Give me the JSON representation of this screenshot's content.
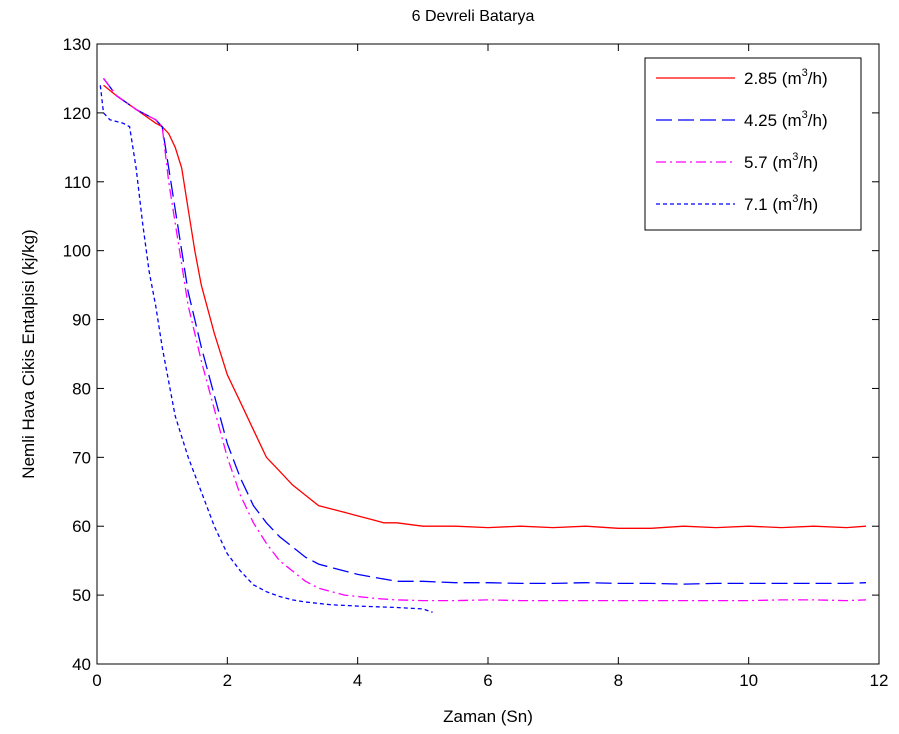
{
  "chart_data": {
    "type": "line",
    "title": "6 Devreli Batarya",
    "xlabel": "Zaman (Sn)",
    "ylabel": "Nemli Hava Cikis Entalpisi (kj/kg)",
    "xlim": [
      0,
      12
    ],
    "ylim": [
      40,
      130
    ],
    "xticks": [
      "0",
      "2",
      "4",
      "6",
      "8",
      "10",
      "12"
    ],
    "yticks": [
      "40",
      "50",
      "60",
      "70",
      "80",
      "90",
      "100",
      "110",
      "120",
      "130"
    ],
    "grid": false,
    "legend_position": "top-right",
    "series": [
      {
        "name": "2.85 (m3/h)",
        "legend": {
          "pre": "2.85 (m",
          "sup": "3",
          "post": "/h)"
        },
        "color": "#ff0000",
        "dash": "solid",
        "x": [
          0.1,
          0.3,
          0.6,
          0.9,
          1.0,
          1.1,
          1.2,
          1.3,
          1.4,
          1.5,
          1.6,
          1.8,
          2.0,
          2.2,
          2.4,
          2.6,
          2.8,
          3.0,
          3.2,
          3.4,
          3.6,
          3.8,
          4.0,
          4.2,
          4.4,
          4.6,
          5.0,
          5.5,
          6.0,
          6.5,
          7.0,
          7.5,
          8.0,
          8.5,
          9.0,
          9.5,
          10.0,
          10.5,
          11.0,
          11.5,
          11.8
        ],
        "y": [
          124,
          122.5,
          120.5,
          118.5,
          118,
          117,
          115,
          112,
          106,
          100,
          95,
          88,
          82,
          78,
          74,
          70,
          68,
          66,
          64.5,
          63,
          62.5,
          62,
          61.5,
          61,
          60.5,
          60.5,
          60,
          60,
          59.8,
          60,
          59.8,
          60,
          59.7,
          59.7,
          60,
          59.8,
          60,
          59.8,
          60,
          59.8,
          60
        ]
      },
      {
        "name": "4.25 (m3/h)",
        "legend": {
          "pre": "4.25 (m",
          "sup": "3",
          "post": "/h)"
        },
        "color": "#0000ff",
        "dash": "long-dash",
        "x": [
          0.1,
          0.3,
          0.6,
          0.9,
          1.0,
          1.1,
          1.2,
          1.3,
          1.4,
          1.5,
          1.6,
          1.8,
          2.0,
          2.2,
          2.4,
          2.6,
          2.8,
          3.0,
          3.2,
          3.4,
          3.6,
          3.8,
          4.0,
          4.3,
          4.6,
          5.0,
          5.5,
          6.0,
          6.5,
          7.0,
          7.5,
          8.0,
          8.5,
          9.0,
          9.5,
          10.0,
          10.5,
          11.0,
          11.5,
          11.8
        ],
        "y": [
          125,
          122.5,
          120.5,
          119,
          118,
          112,
          106,
          100,
          94,
          90,
          86,
          79,
          72,
          67,
          63,
          60.5,
          58.5,
          57,
          55.5,
          54.5,
          54,
          53.5,
          53,
          52.5,
          52,
          52,
          51.8,
          51.8,
          51.7,
          51.7,
          51.8,
          51.7,
          51.7,
          51.6,
          51.7,
          51.7,
          51.7,
          51.7,
          51.7,
          51.8
        ]
      },
      {
        "name": "5.7 (m3/h)",
        "legend": {
          "pre": "5.7 (m",
          "sup": "3",
          "post": "/h)"
        },
        "color": "#ff00ff",
        "dash": "dash-dot",
        "x": [
          0.1,
          0.3,
          0.6,
          0.9,
          1.0,
          1.1,
          1.2,
          1.3,
          1.4,
          1.5,
          1.6,
          1.8,
          2.0,
          2.2,
          2.4,
          2.6,
          2.8,
          3.0,
          3.2,
          3.4,
          3.6,
          3.8,
          4.0,
          4.3,
          4.6,
          5.0,
          5.5,
          6.0,
          6.5,
          7.0,
          7.5,
          8.0,
          8.5,
          9.0,
          9.5,
          10.0,
          10.5,
          11.0,
          11.5,
          11.8
        ],
        "y": [
          125,
          122.5,
          120.5,
          119,
          118,
          110,
          104,
          98,
          92,
          88,
          84,
          77,
          70,
          64.5,
          60.5,
          57.5,
          55,
          53.5,
          52,
          51,
          50.5,
          50,
          49.8,
          49.5,
          49.3,
          49.2,
          49.2,
          49.3,
          49.2,
          49.2,
          49.2,
          49.2,
          49.2,
          49.2,
          49.2,
          49.2,
          49.3,
          49.3,
          49.2,
          49.3
        ]
      },
      {
        "name": "7.1 (m3/h)",
        "legend": {
          "pre": "7.1 (m",
          "sup": "3",
          "post": "/h)"
        },
        "color": "#0000ff",
        "dash": "dotted",
        "x": [
          0.05,
          0.1,
          0.2,
          0.4,
          0.5,
          0.6,
          0.7,
          0.8,
          0.9,
          1.0,
          1.1,
          1.2,
          1.4,
          1.6,
          1.8,
          2.0,
          2.2,
          2.4,
          2.6,
          2.8,
          3.0,
          3.2,
          3.4,
          3.6,
          3.8,
          4.0,
          4.3,
          4.6,
          5.0,
          5.15
        ],
        "y": [
          124,
          120,
          119,
          118.5,
          118,
          112,
          104,
          97,
          92,
          86,
          81,
          76,
          70,
          65,
          60,
          56,
          53.5,
          51.5,
          50.5,
          49.8,
          49.3,
          49,
          48.8,
          48.6,
          48.5,
          48.4,
          48.3,
          48.2,
          48,
          47.5
        ]
      }
    ]
  }
}
